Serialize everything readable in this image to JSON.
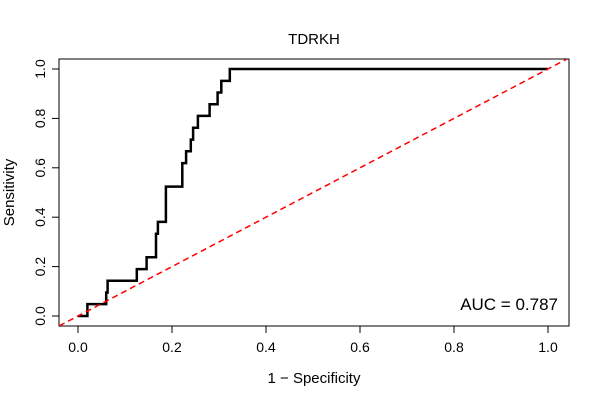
{
  "chart_data": {
    "type": "line",
    "title": "TDRKH",
    "xlabel": "1 − Specificity",
    "ylabel": "Sensitivity",
    "xlim": [
      0.0,
      1.0
    ],
    "ylim": [
      0.0,
      1.0
    ],
    "xticks": [
      "0.0",
      "0.2",
      "0.4",
      "0.6",
      "0.8",
      "1.0"
    ],
    "yticks": [
      "0.0",
      "0.2",
      "0.4",
      "0.6",
      "0.8",
      "1.0"
    ],
    "grid": false,
    "annotation": "AUC = 0.787",
    "series": [
      {
        "style": "step",
        "color": "#000000",
        "x": [
          0.0,
          0.02,
          0.02,
          0.06,
          0.06,
          0.063,
          0.063,
          0.125,
          0.125,
          0.146,
          0.146,
          0.166,
          0.166,
          0.17,
          0.17,
          0.187,
          0.187,
          0.222,
          0.222,
          0.23,
          0.23,
          0.24,
          0.24,
          0.245,
          0.245,
          0.255,
          0.255,
          0.28,
          0.28,
          0.297,
          0.297,
          0.305,
          0.305,
          0.323,
          0.323,
          0.635,
          0.635,
          1.0
        ],
        "y": [
          0.0,
          0.0,
          0.048,
          0.048,
          0.095,
          0.095,
          0.143,
          0.143,
          0.19,
          0.19,
          0.238,
          0.238,
          0.333,
          0.333,
          0.381,
          0.381,
          0.524,
          0.524,
          0.619,
          0.619,
          0.667,
          0.667,
          0.714,
          0.714,
          0.762,
          0.762,
          0.81,
          0.81,
          0.857,
          0.857,
          0.905,
          0.905,
          0.952,
          0.952,
          1.0,
          1.0,
          1.0,
          1.0
        ]
      },
      {
        "style": "dashed",
        "color": "#ff0000",
        "x": [
          -0.04,
          1.04
        ],
        "y": [
          -0.04,
          1.04
        ]
      }
    ]
  }
}
